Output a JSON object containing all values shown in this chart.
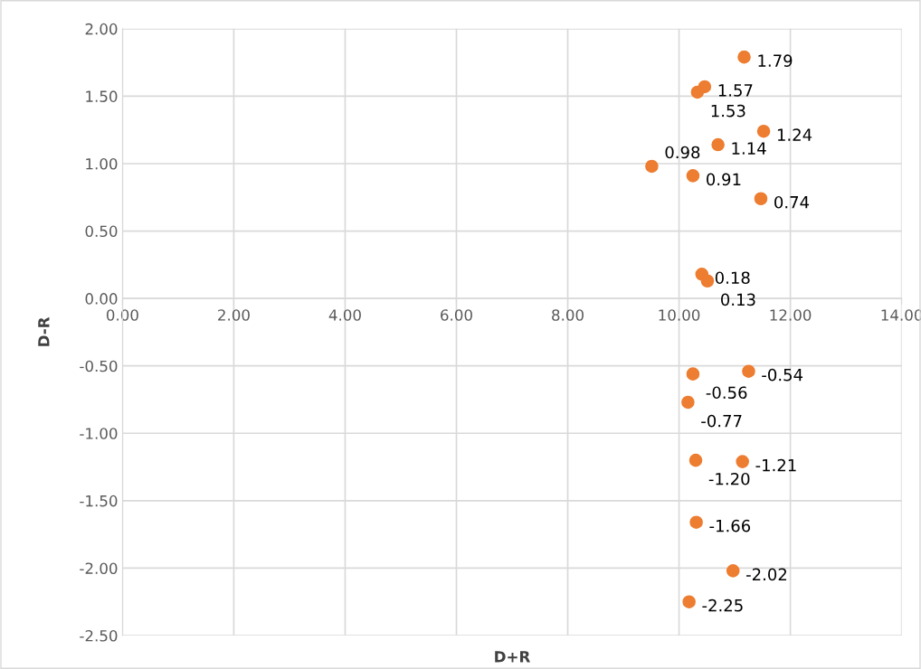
{
  "chart_data": {
    "type": "scatter",
    "xlabel": "D+R",
    "ylabel": "D-R",
    "x": [
      11.17,
      10.46,
      10.33,
      11.52,
      10.7,
      9.51,
      10.25,
      11.47,
      10.41,
      10.51,
      10.25,
      11.25,
      10.16,
      10.3,
      11.14,
      10.31,
      10.97,
      10.18
    ],
    "series": [
      {
        "color": "#ed7d31",
        "values": [
          1.79,
          1.57,
          1.53,
          1.24,
          1.14,
          0.98,
          0.91,
          0.74,
          0.18,
          0.13,
          -0.56,
          -0.54,
          -0.77,
          -1.2,
          -1.21,
          -1.66,
          -2.02,
          -2.25
        ],
        "value_labels": [
          "1.79",
          "1.57",
          "1.53",
          "1.24",
          "1.14",
          "0.98",
          "0.91",
          "0.74",
          "0.18",
          "0.13",
          "-0.56",
          "-0.54",
          "-0.77",
          "-1.20",
          "-1.21",
          "-1.66",
          "-2.02",
          "-2.25"
        ]
      }
    ],
    "xlim": [
      0,
      14
    ],
    "xticks": [
      {
        "value": 0,
        "label": "0.00"
      },
      {
        "value": 2,
        "label": "2.00"
      },
      {
        "value": 4,
        "label": "4.00"
      },
      {
        "value": 6,
        "label": "6.00"
      },
      {
        "value": 8,
        "label": "8.00"
      },
      {
        "value": 10,
        "label": "10.00"
      },
      {
        "value": 12,
        "label": "12.00"
      },
      {
        "value": 14,
        "label": "14.00"
      }
    ],
    "ylim": [
      -2.5,
      2
    ],
    "yticks": [
      {
        "value": -2.5,
        "label": "-2.50"
      },
      {
        "value": -2,
        "label": "-2.00"
      },
      {
        "value": -1.5,
        "label": "-1.50"
      },
      {
        "value": -1,
        "label": "-1.00"
      },
      {
        "value": -0.5,
        "label": "-0.50"
      },
      {
        "value": 0,
        "label": "0.00"
      },
      {
        "value": 0.5,
        "label": "0.50"
      },
      {
        "value": 1,
        "label": "1.00"
      },
      {
        "value": 1.5,
        "label": "1.50"
      },
      {
        "value": 2,
        "label": "2.00"
      }
    ],
    "grid": true,
    "marker": "circle",
    "legend": false
  }
}
